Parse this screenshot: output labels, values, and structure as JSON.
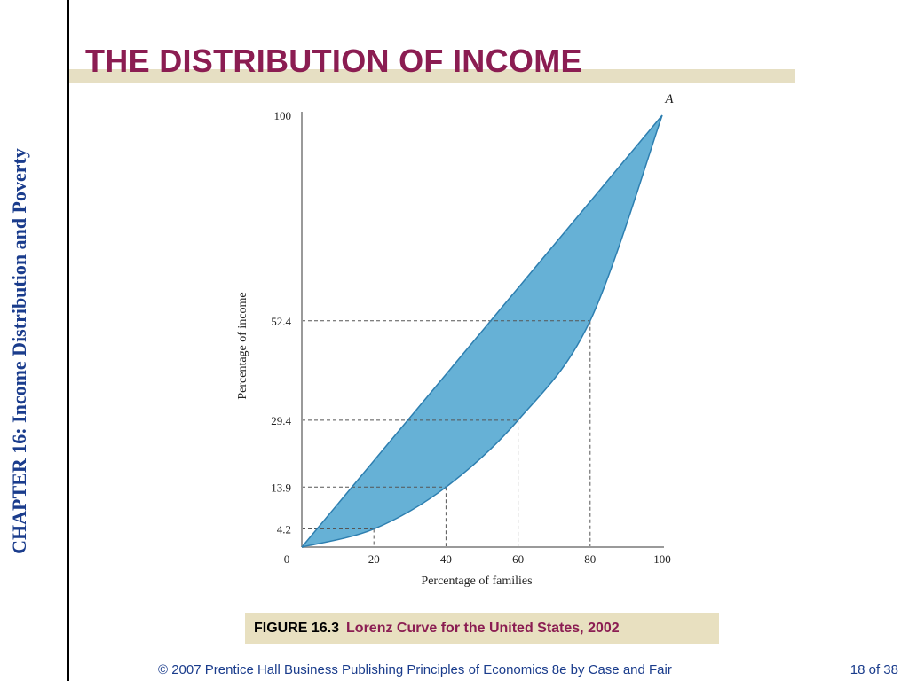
{
  "slide": {
    "side_title": "CHAPTER 16:  Income Distribution and Poverty",
    "title": "THE DISTRIBUTION OF INCOME",
    "figure_label": "FIGURE 16.3",
    "figure_caption": "Lorenz Curve for the United States, 2002",
    "footer_left": "© 2007 Prentice Hall Business Publishing   Principles of Economics 8e by Case and Fair",
    "footer_right": "18 of 38"
  },
  "chart_data": {
    "type": "area",
    "xlabel": "Percentage of families",
    "ylabel": "Percentage of income",
    "xlim": [
      0,
      100
    ],
    "ylim": [
      0,
      100
    ],
    "x_ticks": [
      "0",
      "20",
      "40",
      "60",
      "80",
      "100"
    ],
    "y_ticks": [
      "4.2",
      "13.9",
      "29.4",
      "52.4",
      "100"
    ],
    "point_label": "A",
    "series": [
      {
        "x": [
          0,
          100
        ],
        "y": [
          0,
          100
        ]
      },
      {
        "x": [
          0,
          20,
          40,
          60,
          80,
          100
        ],
        "y": [
          0,
          4.2,
          13.9,
          29.4,
          52.4,
          100
        ]
      }
    ],
    "fill_color": "#66b1d6",
    "curve_color": "#2e7fb0",
    "guide_color": "#555555"
  }
}
